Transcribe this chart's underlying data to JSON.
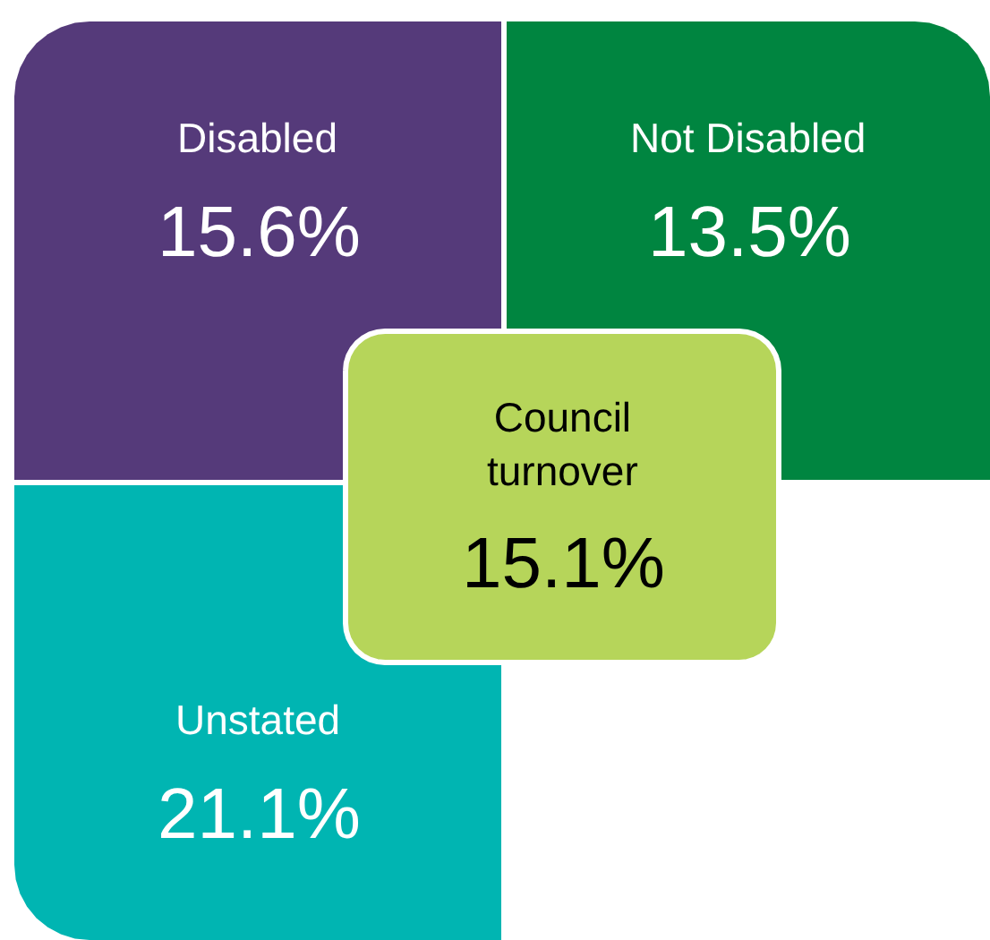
{
  "chart_data": {
    "type": "other",
    "categories": [
      "Disabled",
      "Not Disabled",
      "Unstated",
      "Council turnover"
    ],
    "values": [
      15.6,
      13.5,
      21.1,
      15.1
    ],
    "value_labels": [
      "15.6%",
      "13.5%",
      "21.1%",
      "15.1%"
    ],
    "colors": [
      "#553a7a",
      "#008540",
      "#00b5b2",
      "#b6d55a"
    ]
  }
}
